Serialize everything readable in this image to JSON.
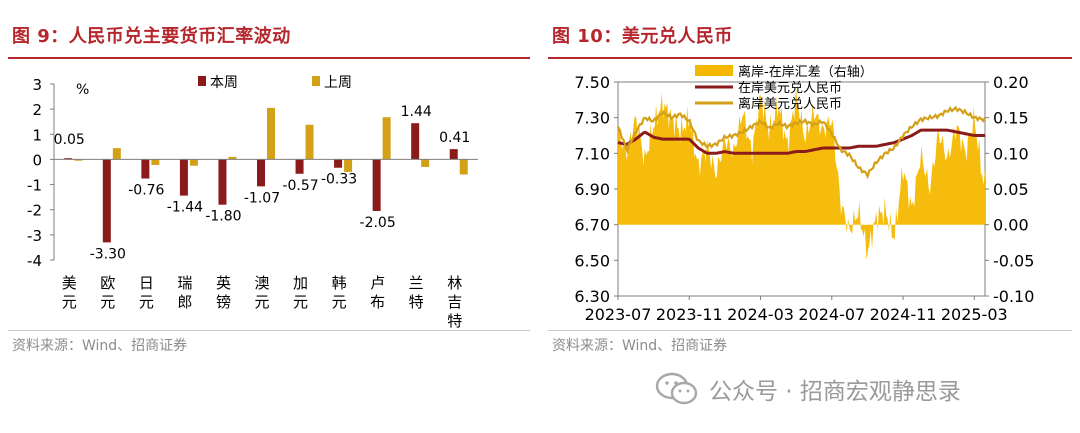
{
  "left": {
    "title": "图 9：人民币兑主要货币汇率波动",
    "source": "资料来源：Wind、招商证券",
    "chart_data": {
      "type": "bar",
      "title": "图 9：人民币兑主要货币汇率波动",
      "ylabel": "%",
      "ylim": [
        -4,
        3
      ],
      "yticks": [
        "3",
        "2",
        "1",
        "0",
        "-1",
        "-2",
        "-3",
        "-4"
      ],
      "yvalues": [
        3,
        2,
        1,
        0,
        -1,
        -2,
        -3,
        -4
      ],
      "categories": [
        "美元",
        "欧元",
        "日元",
        "瑞郎",
        "英镑",
        "澳元",
        "加元",
        "韩元",
        "卢布",
        "兰特",
        "林吉特"
      ],
      "series": [
        {
          "name": "本周",
          "color": "#8b1a1a",
          "values": [
            0.05,
            -3.3,
            -0.76,
            -1.44,
            -1.8,
            -1.07,
            -0.57,
            -0.33,
            -2.05,
            1.44,
            0.41
          ],
          "labels": [
            "0.05",
            "-3.30",
            "-0.76",
            "-1.44",
            "-1.80",
            "-1.07",
            "-0.57",
            "-0.33",
            "-2.05",
            "1.44",
            "0.41"
          ]
        },
        {
          "name": "上周",
          "color": "#d4a017",
          "values": [
            -0.05,
            0.45,
            -0.22,
            -0.25,
            0.1,
            2.05,
            1.38,
            -0.5,
            1.68,
            -0.3,
            -0.6
          ]
        }
      ],
      "legend": "top"
    }
  },
  "right": {
    "title": "图 10：美元兑人民币",
    "source": "资料来源：Wind、招商证券",
    "chart_data": {
      "type": "line",
      "title": "图 10：美元兑人民币",
      "ylim_left": [
        6.3,
        7.5
      ],
      "ylim_right": [
        -0.1,
        0.2
      ],
      "yticks_left": [
        "7.50",
        "7.30",
        "7.10",
        "6.90",
        "6.70",
        "6.50",
        "6.30"
      ],
      "yvalues_left": [
        7.5,
        7.3,
        7.1,
        6.9,
        6.7,
        6.5,
        6.3
      ],
      "yticks_right": [
        "0.20",
        "0.15",
        "0.10",
        "0.05",
        "0.00",
        "-0.05",
        "-0.10"
      ],
      "yvalues_right": [
        0.2,
        0.15,
        0.1,
        0.05,
        0.0,
        -0.05,
        -0.1
      ],
      "xticks": [
        "2023-07",
        "2023-11",
        "2024-03",
        "2024-07",
        "2024-11",
        "2025-03"
      ],
      "xtick_months": [
        0,
        4,
        8,
        12,
        16,
        20
      ],
      "xlim_months": [
        0,
        20.6
      ],
      "legend": "top",
      "series": [
        {
          "name": "离岸-在岸汇差（右轴）",
          "axis": "right",
          "style": "area",
          "color": "#f5b800",
          "x": [
            0,
            0.5,
            1,
            1.5,
            2,
            2.5,
            3,
            3.5,
            4,
            4.5,
            5,
            5.5,
            6,
            6.5,
            7,
            7.5,
            8,
            8.5,
            9,
            9.5,
            10,
            10.5,
            11,
            11.5,
            12,
            12.5,
            13,
            13.5,
            14,
            14.5,
            15,
            15.5,
            16,
            16.5,
            17,
            17.5,
            18,
            18.5,
            19,
            19.5,
            20,
            20.5
          ],
          "values": [
            0.13,
            0.1,
            0.15,
            0.09,
            0.14,
            0.17,
            0.15,
            0.13,
            0.15,
            0.08,
            0.11,
            0.07,
            0.12,
            0.1,
            0.16,
            0.1,
            0.18,
            0.13,
            0.17,
            0.11,
            0.18,
            0.12,
            0.16,
            0.13,
            0.15,
            0.03,
            -0.01,
            0.02,
            -0.04,
            0.01,
            0.02,
            -0.02,
            0.08,
            0.02,
            0.1,
            0.05,
            0.13,
            0.09,
            0.14,
            0.1,
            0.15,
            0.06
          ]
        },
        {
          "name": "在岸美元兑人民币",
          "axis": "left",
          "style": "line",
          "color": "#8b1a1a",
          "x": [
            0,
            0.5,
            1,
            1.5,
            2,
            2.5,
            3,
            3.5,
            4,
            4.5,
            5,
            5.5,
            6,
            6.5,
            7,
            7.5,
            8,
            8.5,
            9,
            9.5,
            10,
            10.5,
            11,
            11.5,
            12,
            12.5,
            13,
            13.5,
            14,
            14.5,
            15,
            15.5,
            16,
            16.5,
            17,
            17.5,
            18,
            18.5,
            19,
            19.5,
            20,
            20.5
          ],
          "values": [
            7.16,
            7.15,
            7.18,
            7.22,
            7.19,
            7.18,
            7.18,
            7.18,
            7.18,
            7.13,
            7.1,
            7.1,
            7.11,
            7.1,
            7.1,
            7.1,
            7.1,
            7.1,
            7.1,
            7.1,
            7.11,
            7.11,
            7.12,
            7.13,
            7.13,
            7.13,
            7.13,
            7.14,
            7.14,
            7.14,
            7.15,
            7.16,
            7.18,
            7.2,
            7.23,
            7.23,
            7.23,
            7.23,
            7.22,
            7.21,
            7.2,
            7.2
          ]
        },
        {
          "name": "离岸美元兑人民币",
          "axis": "left",
          "style": "line",
          "color": "#d4a017",
          "x": [
            0,
            0.5,
            1,
            1.5,
            2,
            2.5,
            3,
            3.5,
            4,
            4.5,
            5,
            5.5,
            6,
            6.5,
            7,
            7.5,
            8,
            8.5,
            9,
            9.5,
            10,
            10.5,
            11,
            11.5,
            12,
            12.5,
            13,
            13.5,
            14,
            14.5,
            15,
            15.5,
            16,
            16.5,
            17,
            17.5,
            18,
            18.5,
            19,
            19.5,
            20,
            20.5
          ],
          "values": [
            7.25,
            7.12,
            7.22,
            7.3,
            7.28,
            7.33,
            7.3,
            7.32,
            7.28,
            7.17,
            7.14,
            7.15,
            7.19,
            7.2,
            7.22,
            7.25,
            7.28,
            7.24,
            7.27,
            7.25,
            7.27,
            7.28,
            7.26,
            7.28,
            7.21,
            7.12,
            7.09,
            7.02,
            6.98,
            7.05,
            7.1,
            7.13,
            7.2,
            7.25,
            7.29,
            7.3,
            7.31,
            7.34,
            7.35,
            7.33,
            7.3,
            7.29
          ]
        }
      ]
    }
  },
  "watermark": {
    "text": "公众号 · 招商宏观静思录"
  }
}
